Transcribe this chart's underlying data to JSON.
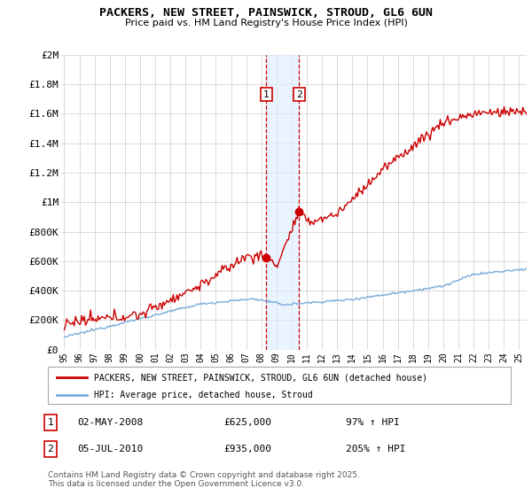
{
  "title": "PACKERS, NEW STREET, PAINSWICK, STROUD, GL6 6UN",
  "subtitle": "Price paid vs. HM Land Registry's House Price Index (HPI)",
  "ylim": [
    0,
    2000000
  ],
  "xlim": [
    1994.8,
    2025.5
  ],
  "yticks": [
    0,
    200000,
    400000,
    600000,
    800000,
    1000000,
    1200000,
    1400000,
    1600000,
    1800000,
    2000000
  ],
  "ytick_labels": [
    "£0",
    "£200K",
    "£400K",
    "£600K",
    "£800K",
    "£1M",
    "£1.2M",
    "£1.4M",
    "£1.6M",
    "£1.8M",
    "£2M"
  ],
  "hpi_color": "#7aacda",
  "price_color": "#cc0000",
  "marker1_x": 2008.33,
  "marker1_y": 625000,
  "marker2_x": 2010.5,
  "marker2_y": 935000,
  "legend_line1": "PACKERS, NEW STREET, PAINSWICK, STROUD, GL6 6UN (detached house)",
  "legend_line2": "HPI: Average price, detached house, Stroud",
  "footer": "Contains HM Land Registry data © Crown copyright and database right 2025.\nThis data is licensed under the Open Government Licence v3.0.",
  "bg_color": "#ffffff",
  "grid_color": "#cccccc",
  "vspan_color": "#ddeeff",
  "vline_color": "#cc0000"
}
